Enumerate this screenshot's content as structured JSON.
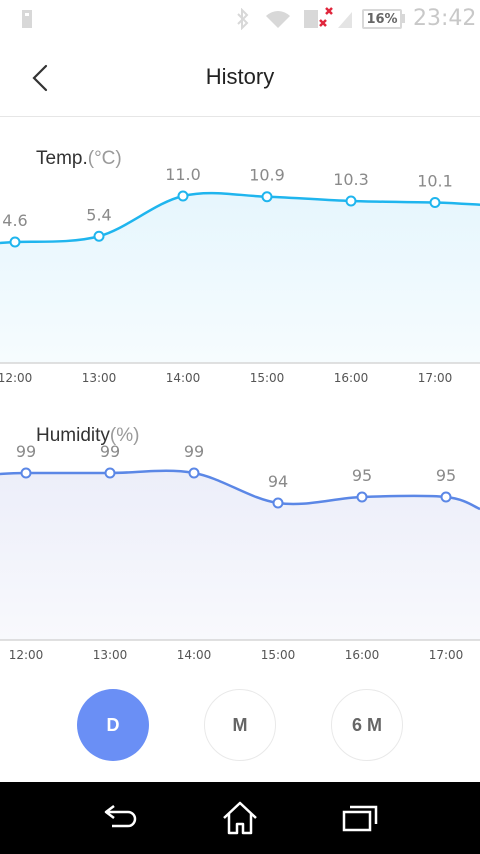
{
  "status_bar": {
    "battery": "16%",
    "time": "23:42"
  },
  "header": {
    "title": "History"
  },
  "temp_chart_title": {
    "label": "Temp.",
    "unit": "(°C)"
  },
  "humidity_chart_title": {
    "label": "Humidity",
    "unit": "(%)"
  },
  "range_selector": {
    "day": "D",
    "month": "M",
    "six_month": "6 M"
  },
  "chart_data": [
    {
      "type": "area",
      "title": "Temp.(°C)",
      "x": [
        "12:00",
        "13:00",
        "14:00",
        "15:00",
        "16:00",
        "17:00"
      ],
      "values": [
        4.6,
        5.4,
        11.0,
        10.9,
        10.3,
        10.1
      ],
      "labels": [
        "4.6",
        "5.4",
        "11.0",
        "10.9",
        "10.3",
        "10.1"
      ],
      "color": "#1fb5ee",
      "fill": "#e6f6fd"
    },
    {
      "type": "area",
      "title": "Humidity(%)",
      "x": [
        "12:00",
        "13:00",
        "14:00",
        "15:00",
        "16:00",
        "17:00"
      ],
      "values": [
        99,
        99,
        99,
        94,
        95,
        95
      ],
      "labels": [
        "99",
        "99",
        "99",
        "94",
        "95",
        "95"
      ],
      "color": "#5b87e6",
      "fill": "#eceef9"
    }
  ]
}
